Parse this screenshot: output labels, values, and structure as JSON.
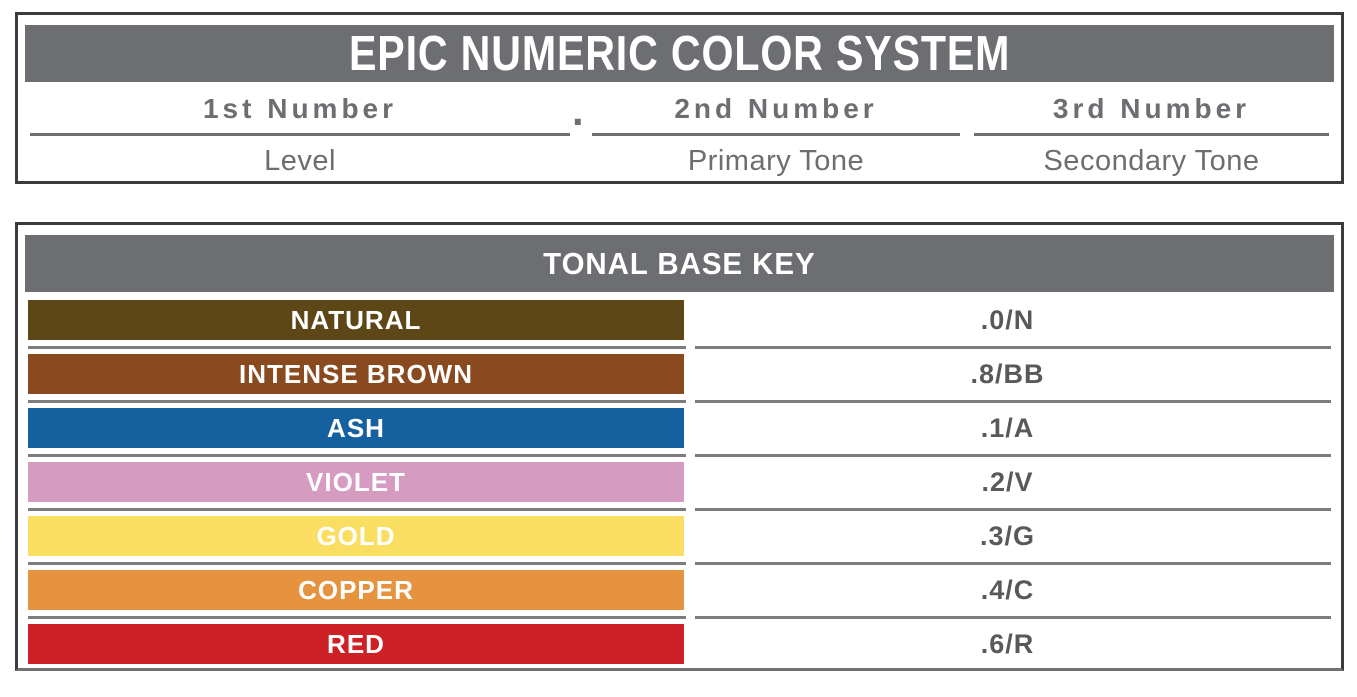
{
  "top_panel": {
    "title": "EPIC NUMERIC COLOR SYSTEM",
    "separator_dot": ".",
    "columns": [
      {
        "header": "1st Number",
        "sub": "Level"
      },
      {
        "header": "2nd Number",
        "sub": "Primary Tone"
      },
      {
        "header": "3rd Number",
        "sub": "Secondary Tone"
      }
    ]
  },
  "tonal_key": {
    "title": "TONAL BASE KEY",
    "rows": [
      {
        "label": "NATURAL",
        "code": ".0/N",
        "color": "#5e4717"
      },
      {
        "label": "INTENSE BROWN",
        "code": ".8/BB",
        "color": "#8a4a20"
      },
      {
        "label": "ASH",
        "code": ".1/A",
        "color": "#15609f"
      },
      {
        "label": "VIOLET",
        "code": ".2/V",
        "color": "#d69bc1"
      },
      {
        "label": "GOLD",
        "code": ".3/G",
        "color": "#f9de62"
      },
      {
        "label": "COPPER",
        "code": ".4/C",
        "color": "#e6933f"
      },
      {
        "label": "RED",
        "code": ".6/R",
        "color": "#ce2127"
      }
    ]
  },
  "colors": {
    "header_bar_gray": "#6d6e71",
    "label_text_gray": "#6d6e71",
    "code_text_gray": "#58595b",
    "separator_gray": "#7a7c7f",
    "panel_border": "#3a3b3d",
    "bar_label_text": "#ffffff"
  }
}
